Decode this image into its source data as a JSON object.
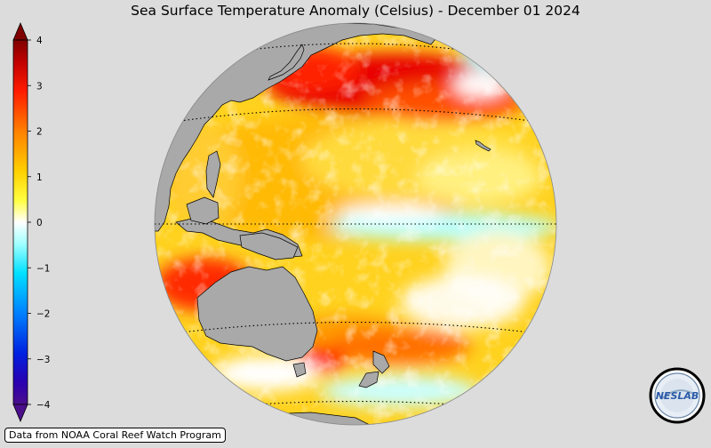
{
  "map": {
    "title": "Sea Surface Temperature Anomaly (Celsius) - December 01 2024",
    "units": "Celsius",
    "date": "December 01 2024",
    "projection": "orthographic",
    "center": "Pacific Ocean",
    "colorbar": {
      "min": -4,
      "max": 4,
      "ticks": [
        "4",
        "3",
        "2",
        "1",
        "0",
        "−1",
        "−2",
        "−3",
        "−4"
      ],
      "colors": [
        "#4b0f8c",
        "#0000ff",
        "#0080ff",
        "#00ffff",
        "#ffffff",
        "#ffff00",
        "#ff8000",
        "#ff0000",
        "#7f0000"
      ]
    },
    "credit": "Data from NOAA Coral Reef Watch Program",
    "logo": {
      "text": "NESLAB",
      "icon": "neslab-logo-icon"
    },
    "colors": {
      "background": "#dcdcdc",
      "land": "#a9a9a9",
      "coast": "#000000"
    }
  }
}
